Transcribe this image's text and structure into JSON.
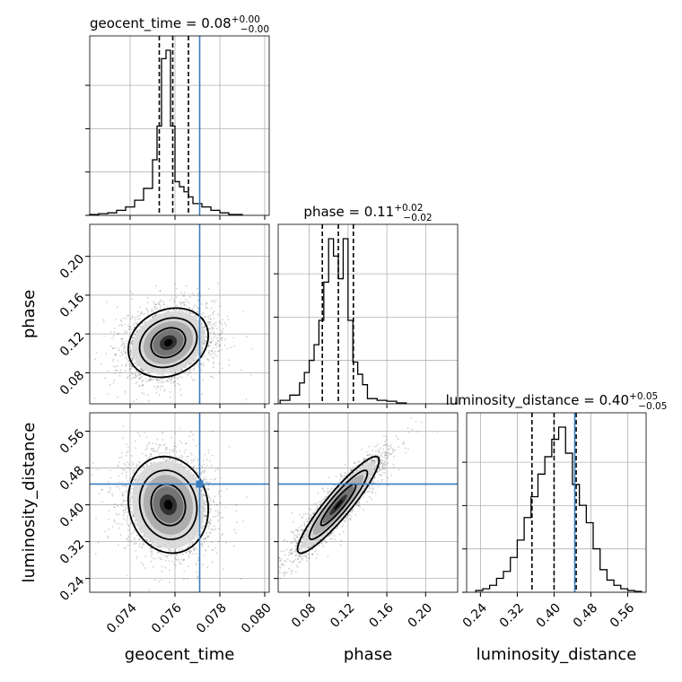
{
  "chart_data": {
    "type": "corner",
    "parameters": [
      {
        "name": "geocent_time",
        "axis_label": "geocent_time",
        "title_main": "geocent_time = 0.08",
        "title_sup": "+0.00",
        "title_sub": "−0.00",
        "range": [
          0.0722,
          0.0802
        ],
        "ticks": [
          0.074,
          0.076,
          0.078,
          0.08
        ],
        "tick_labels": [
          "0.074",
          "0.076",
          "0.078",
          "0.080"
        ],
        "median": 0.0759,
        "quantiles": [
          0.0753,
          0.0759,
          0.0766
        ],
        "truth": 0.0771,
        "hist": {
          "edges": [
            0.0722,
            0.0726,
            0.073,
            0.0734,
            0.0738,
            0.0742,
            0.0746,
            0.075,
            0.0752,
            0.0754,
            0.0756,
            0.0758,
            0.076,
            0.0762,
            0.0764,
            0.0766,
            0.0768,
            0.0772,
            0.0776,
            0.078,
            0.0784,
            0.079
          ],
          "counts": [
            0.005,
            0.01,
            0.015,
            0.03,
            0.05,
            0.09,
            0.16,
            0.33,
            0.53,
            0.93,
            0.98,
            0.53,
            0.2,
            0.17,
            0.14,
            0.11,
            0.07,
            0.05,
            0.03,
            0.015,
            0.005
          ]
        }
      },
      {
        "name": "phase",
        "axis_label": "phase",
        "title_main": "phase = 0.11",
        "title_sup": "+0.02",
        "title_sub": "−0.02",
        "range": [
          0.048,
          0.233
        ],
        "ticks": [
          0.08,
          0.12,
          0.16,
          0.2
        ],
        "tick_labels": [
          "0.08",
          "0.12",
          "0.16",
          "0.20"
        ],
        "median": 0.11,
        "quantiles": [
          0.0935,
          0.11,
          0.1255
        ],
        "truth": null,
        "hist": {
          "edges": [
            0.05,
            0.06,
            0.07,
            0.075,
            0.08,
            0.085,
            0.09,
            0.095,
            0.1,
            0.105,
            0.11,
            0.115,
            0.12,
            0.125,
            0.13,
            0.135,
            0.14,
            0.15,
            0.16,
            0.17,
            0.18
          ],
          "counts": [
            0.02,
            0.05,
            0.12,
            0.18,
            0.25,
            0.34,
            0.48,
            0.7,
            0.95,
            0.85,
            0.72,
            0.95,
            0.48,
            0.24,
            0.17,
            0.11,
            0.03,
            0.02,
            0.015,
            0.005
          ]
        }
      },
      {
        "name": "luminosity_distance",
        "axis_label": "luminosity_distance",
        "title_main": "luminosity_distance = 0.40",
        "title_sup": "+0.05",
        "title_sub": "−0.05",
        "range": [
          0.21,
          0.6
        ],
        "ticks": [
          0.24,
          0.32,
          0.4,
          0.48,
          0.56
        ],
        "tick_labels": [
          "0.24",
          "0.32",
          "0.40",
          "0.48",
          "0.56"
        ],
        "median": 0.4,
        "quantiles": [
          0.352,
          0.4,
          0.448
        ],
        "truth": 0.445,
        "hist": {
          "edges": [
            0.23,
            0.245,
            0.26,
            0.275,
            0.29,
            0.305,
            0.32,
            0.335,
            0.35,
            0.365,
            0.38,
            0.395,
            0.41,
            0.425,
            0.44,
            0.455,
            0.47,
            0.485,
            0.5,
            0.515,
            0.53,
            0.545,
            0.56,
            0.575,
            0.59
          ],
          "counts": [
            0.01,
            0.02,
            0.04,
            0.08,
            0.12,
            0.2,
            0.3,
            0.43,
            0.55,
            0.68,
            0.78,
            0.88,
            0.95,
            0.8,
            0.62,
            0.5,
            0.4,
            0.25,
            0.13,
            0.07,
            0.04,
            0.02,
            0.01,
            0.005
          ]
        }
      }
    ],
    "pairs": [
      {
        "x": 0,
        "y": 1,
        "truth_x": 0.0771,
        "truth_y": null,
        "center": [
          0.0757,
          0.111
        ],
        "spread": [
          0.00085,
          0.017
        ],
        "corr": 0.2,
        "n": 3500
      },
      {
        "x": 0,
        "y": 2,
        "truth_x": 0.0771,
        "truth_y": 0.445,
        "center": [
          0.0757,
          0.4
        ],
        "spread": [
          0.00085,
          0.05
        ],
        "corr": -0.1,
        "n": 3500
      },
      {
        "x": 1,
        "y": 2,
        "truth_x": null,
        "truth_y": 0.445,
        "center": [
          0.11,
          0.4
        ],
        "spread": [
          0.02,
          0.05
        ],
        "corr": 0.92,
        "n": 3500
      }
    ],
    "truth_color": "#3a7dbf",
    "hist_color": "#000000",
    "grid": true,
    "legend": "none"
  }
}
